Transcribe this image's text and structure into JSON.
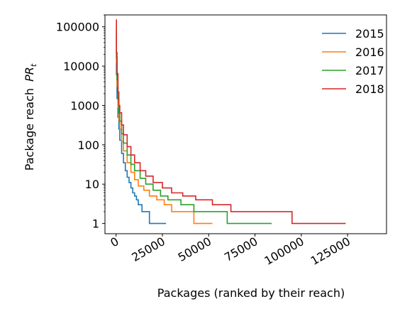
{
  "chart_data": {
    "type": "line",
    "title": "",
    "xlabel": "Packages (ranked by their reach)",
    "ylabel": "Package reach",
    "ylabel_math": "PR",
    "ylabel_subscript": "t",
    "xlim": [
      -6000,
      146000
    ],
    "ylim": [
      0.55,
      200000
    ],
    "yscale": "log",
    "grid": false,
    "legend_position": "top-right",
    "xticks": [
      0,
      25000,
      50000,
      75000,
      100000,
      125000
    ],
    "xtick_labels": [
      "0",
      "25000",
      "50000",
      "75000",
      "100000",
      "125000"
    ],
    "yticks": [
      1,
      10,
      100,
      1000,
      10000,
      100000
    ],
    "ytick_labels": [
      "1",
      "10",
      "100",
      "1000",
      "10000",
      "100000"
    ],
    "series": [
      {
        "name": "2015",
        "color": "#1f77b4",
        "x": [
          0,
          200,
          500,
          1000,
          1500,
          2000,
          3000,
          4000,
          5000,
          6000,
          7000,
          8000,
          9000,
          10000,
          11000,
          12000,
          14000,
          16000,
          18000,
          20000,
          27000
        ],
        "y": [
          60000,
          6000,
          1500,
          500,
          250,
          130,
          60,
          35,
          22,
          15,
          11,
          8,
          6,
          5,
          4,
          3,
          2,
          2,
          1,
          1,
          1
        ]
      },
      {
        "name": "2016",
        "color": "#ff7f0e",
        "x": [
          0,
          200,
          500,
          1000,
          1500,
          2000,
          3000,
          4000,
          6000,
          8000,
          10000,
          12000,
          15000,
          18000,
          22000,
          26000,
          30000,
          36000,
          42000,
          52000
        ],
        "y": [
          90000,
          12000,
          3000,
          900,
          420,
          250,
          120,
          70,
          35,
          20,
          13,
          9,
          7,
          5,
          4,
          3,
          2,
          2,
          1,
          1
        ]
      },
      {
        "name": "2017",
        "color": "#2ca02c",
        "x": [
          0,
          200,
          500,
          1000,
          1500,
          2000,
          3000,
          4000,
          6000,
          8000,
          10000,
          13000,
          16000,
          20000,
          24000,
          28000,
          35000,
          42000,
          50000,
          60000,
          84000
        ],
        "y": [
          120000,
          16000,
          4500,
          1400,
          650,
          400,
          190,
          110,
          55,
          32,
          22,
          14,
          10,
          7,
          5,
          4,
          3,
          2,
          2,
          1,
          1
        ]
      },
      {
        "name": "2018",
        "color": "#d62728",
        "x": [
          0,
          200,
          500,
          1000,
          1500,
          2000,
          3000,
          4000,
          6000,
          8000,
          10000,
          13000,
          16000,
          20000,
          25000,
          30000,
          36000,
          43000,
          52000,
          62000,
          72000,
          95000,
          124000
        ],
        "y": [
          150000,
          22000,
          6500,
          2200,
          1000,
          650,
          320,
          180,
          90,
          55,
          35,
          22,
          16,
          11,
          8,
          6,
          5,
          4,
          3,
          2,
          2,
          1,
          1
        ]
      }
    ]
  }
}
